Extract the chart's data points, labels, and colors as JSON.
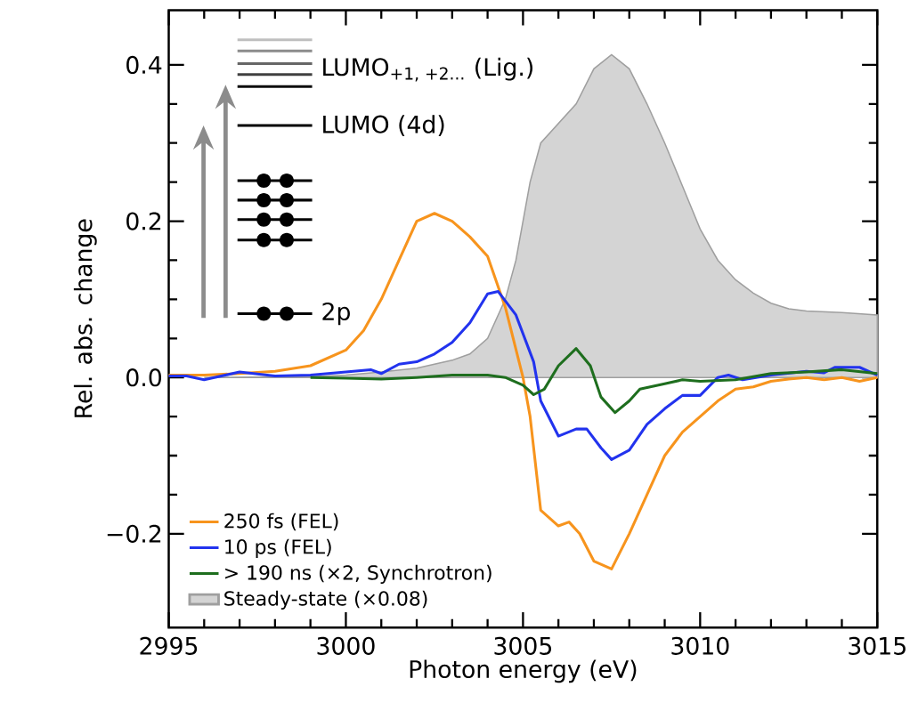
{
  "chart_data": {
    "type": "line",
    "xlabel": "Photon energy (eV)",
    "ylabel": "Rel. abs. change",
    "xlim": [
      2995,
      3015
    ],
    "ylim": [
      -0.32,
      0.47
    ],
    "xticks": [
      2995,
      3000,
      3005,
      3010,
      3015
    ],
    "yticks": [
      {
        "value": -0.2,
        "label": "−0.2"
      },
      {
        "value": 0,
        "label": "0.0"
      },
      {
        "value": 0.2,
        "label": "0.2"
      },
      {
        "value": 0.4,
        "label": "0.4"
      }
    ],
    "grid": false,
    "legend": "bottom left",
    "marker": "none",
    "line_style": "solid",
    "annotations": [
      "LUMO$_{+1, +2...}$ (Lig.)",
      "LUMO (4d)",
      "2p"
    ],
    "series": [
      {
        "name": "250 fs (FEL)",
        "color": "#f7941d",
        "x": [
          2995,
          2996,
          2997,
          2998,
          2999,
          3000,
          3000.5,
          3001,
          3001.5,
          3002,
          3002.5,
          3003,
          3003.5,
          3004,
          3004.5,
          3005,
          3005.2,
          3005.5,
          3006,
          3006.3,
          3006.6,
          3007,
          3007.5,
          3008,
          3008.5,
          3009,
          3009.5,
          3010,
          3010.5,
          3011,
          3011.5,
          3012,
          3012.5,
          3013,
          3013.5,
          3014,
          3014.5,
          3015
        ],
        "values": [
          0.003,
          0.003,
          0.005,
          0.008,
          0.015,
          0.035,
          0.06,
          0.1,
          0.15,
          0.2,
          0.21,
          0.2,
          0.18,
          0.155,
          0.09,
          0.0,
          -0.05,
          -0.17,
          -0.19,
          -0.185,
          -0.2,
          -0.235,
          -0.245,
          -0.2,
          -0.15,
          -0.1,
          -0.07,
          -0.05,
          -0.03,
          -0.015,
          -0.012,
          -0.005,
          -0.002,
          0.0,
          -0.003,
          0.0,
          -0.005,
          0.0
        ]
      },
      {
        "name": "10 ps (FEL)",
        "color": "#2233ee",
        "x": [
          2995,
          2995.5,
          2996,
          2997,
          2998,
          2999,
          3000,
          3000.7,
          3001,
          3001.5,
          3002,
          3002.5,
          3003,
          3003.5,
          3004,
          3004.3,
          3004.8,
          3005.3,
          3005.5,
          3006,
          3006.5,
          3006.8,
          3007.2,
          3007.5,
          3008,
          3008.5,
          3009,
          3009.5,
          3010,
          3010.5,
          3010.8,
          3011.2,
          3012,
          3013,
          3013.5,
          3013.8,
          3014.5,
          3015
        ],
        "values": [
          0.002,
          0.002,
          -0.003,
          0.007,
          0.002,
          0.003,
          0.007,
          0.01,
          0.005,
          0.017,
          0.02,
          0.03,
          0.045,
          0.07,
          0.107,
          0.11,
          0.08,
          0.02,
          -0.03,
          -0.075,
          -0.066,
          -0.066,
          -0.09,
          -0.105,
          -0.093,
          -0.06,
          -0.04,
          -0.023,
          -0.023,
          0.0,
          0.003,
          -0.003,
          0.003,
          0.008,
          0.006,
          0.013,
          0.013,
          0.003
        ]
      },
      {
        "name": "> 190 ns (×2, Synchrotron)",
        "color": "#1e6e1e",
        "x": [
          2999,
          3000,
          3001,
          3002,
          3003,
          3004,
          3004.5,
          3005,
          3005.3,
          3005.6,
          3006,
          3006.5,
          3006.9,
          3007.2,
          3007.6,
          3008,
          3008.3,
          3009,
          3009.5,
          3010,
          3011,
          3012,
          3013,
          3014,
          3015
        ],
        "values": [
          0.0,
          -0.001,
          -0.002,
          0.0,
          0.003,
          0.003,
          0.0,
          -0.01,
          -0.022,
          -0.015,
          0.015,
          0.037,
          0.015,
          -0.025,
          -0.045,
          -0.03,
          -0.015,
          -0.008,
          -0.003,
          -0.005,
          -0.003,
          0.005,
          0.007,
          0.01,
          0.005
        ]
      },
      {
        "name": "Steady-state (×0.08)",
        "type": "area",
        "color": "#d4d4d4",
        "x": [
          2996,
          2999,
          3000,
          3001,
          3002,
          3003,
          3003.5,
          3004,
          3004.5,
          3004.8,
          3005.2,
          3005.5,
          3006,
          3006.5,
          3007,
          3007.5,
          3008,
          3008.5,
          3009,
          3009.5,
          3010,
          3010.5,
          3011,
          3011.5,
          3012,
          3012.5,
          3013,
          3014,
          3015
        ],
        "values": [
          0.0,
          0.001,
          0.003,
          0.007,
          0.012,
          0.022,
          0.03,
          0.05,
          0.1,
          0.15,
          0.25,
          0.3,
          0.325,
          0.35,
          0.395,
          0.413,
          0.395,
          0.35,
          0.3,
          0.245,
          0.19,
          0.15,
          0.125,
          0.108,
          0.095,
          0.088,
          0.085,
          0.083,
          0.08
        ]
      }
    ]
  }
}
